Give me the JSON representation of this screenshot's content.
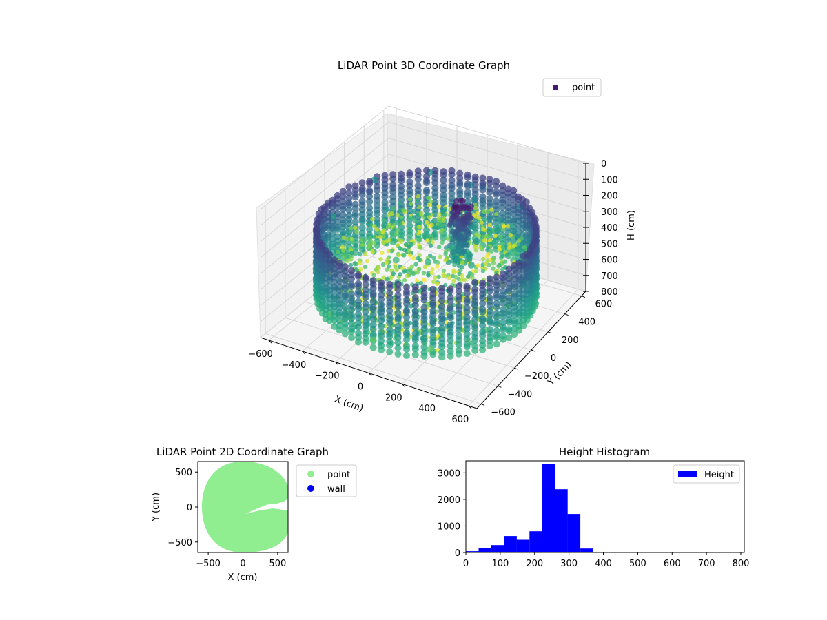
{
  "chart_data": [
    {
      "type": "scatter",
      "title": "LiDAR Point 3D Coordinate Graph",
      "xlabel": "X (cm)",
      "ylabel": "Y (cm)",
      "zlabel": "H (cm)",
      "xlim": [
        -650,
        650
      ],
      "ylim": [
        -650,
        650
      ],
      "zlim": [
        800,
        0
      ],
      "xticks": [
        -600,
        -400,
        -200,
        0,
        200,
        400,
        600
      ],
      "yticks": [
        -600,
        -400,
        -200,
        0,
        200,
        400,
        600
      ],
      "zticks": [
        0,
        100,
        200,
        300,
        400,
        500,
        600,
        700,
        800
      ],
      "legend": {
        "position": "top-right",
        "entries": [
          "point"
        ]
      },
      "colormap": "viridis",
      "grid": true,
      "series": [
        {
          "name": "point",
          "points": [
            {
              "x": 0,
              "y": 600,
              "h": 300
            },
            {
              "x": 300,
              "y": 520,
              "h": 300
            },
            {
              "x": 520,
              "y": 300,
              "h": 300
            },
            {
              "x": 600,
              "y": 0,
              "h": 400
            },
            {
              "x": 520,
              "y": -300,
              "h": 550
            },
            {
              "x": 300,
              "y": -520,
              "h": 620
            },
            {
              "x": 0,
              "y": -600,
              "h": 620
            },
            {
              "x": -300,
              "y": -520,
              "h": 600
            },
            {
              "x": -520,
              "y": -300,
              "h": 500
            },
            {
              "x": -600,
              "y": 0,
              "h": 350
            },
            {
              "x": -520,
              "y": 300,
              "h": 250
            },
            {
              "x": -300,
              "y": 520,
              "h": 250
            },
            {
              "x": 100,
              "y": 300,
              "h": 100
            },
            {
              "x": 150,
              "y": 250,
              "h": 150
            },
            {
              "x": 200,
              "y": 150,
              "h": 250
            },
            {
              "x": 250,
              "y": 100,
              "h": 300
            },
            {
              "x": 300,
              "y": -50,
              "h": 350
            },
            {
              "x": 350,
              "y": -100,
              "h": 420
            },
            {
              "x": 400,
              "y": -200,
              "h": 480
            },
            {
              "x": -200,
              "y": 0,
              "h": 500
            },
            {
              "x": -100,
              "y": -200,
              "h": 520
            },
            {
              "x": 0,
              "y": 0,
              "h": 450
            },
            {
              "x": 200,
              "y": -300,
              "h": 500
            },
            {
              "x": 100,
              "y": 100,
              "h": 380
            },
            {
              "x": -300,
              "y": 200,
              "h": 400
            },
            {
              "x": 300,
              "y": 250,
              "h": 300
            }
          ]
        }
      ]
    },
    {
      "type": "scatter",
      "title": "LiDAR Point 2D Coordinate Graph",
      "xlabel": "X (cm)",
      "ylabel": "Y (cm)",
      "xlim": [
        -650,
        650
      ],
      "ylim": [
        -650,
        650
      ],
      "xticks": [
        -500,
        0,
        500
      ],
      "yticks": [
        -500,
        0,
        500
      ],
      "legend": {
        "position": "outside-right",
        "entries": [
          "point",
          "wall"
        ]
      },
      "series": [
        {
          "name": "point",
          "color": "#90ee90",
          "shape": "filled disk of radius ~600 cm"
        },
        {
          "name": "wall",
          "color": "#0000ff"
        }
      ]
    },
    {
      "type": "bar",
      "title": "Height Histogram",
      "xlim": [
        0,
        810
      ],
      "ylim": [
        0,
        3450
      ],
      "xticks": [
        0,
        100,
        200,
        300,
        400,
        500,
        600,
        700,
        800
      ],
      "yticks": [
        0,
        1000,
        2000,
        3000
      ],
      "legend": {
        "position": "top-right",
        "entries": [
          "Height"
        ]
      },
      "series": [
        {
          "name": "Height",
          "color": "#0000ff",
          "bin_edges": [
            0,
            37,
            74,
            111,
            148,
            185,
            222,
            259,
            296,
            333,
            370,
            407,
            444,
            481,
            518,
            555,
            592,
            629,
            666,
            703,
            740,
            777,
            814
          ],
          "counts": [
            50,
            180,
            280,
            620,
            480,
            800,
            3330,
            2380,
            1450,
            150,
            0,
            0,
            0,
            0,
            0,
            0,
            0,
            0,
            0,
            0,
            0,
            0
          ]
        }
      ]
    }
  ]
}
